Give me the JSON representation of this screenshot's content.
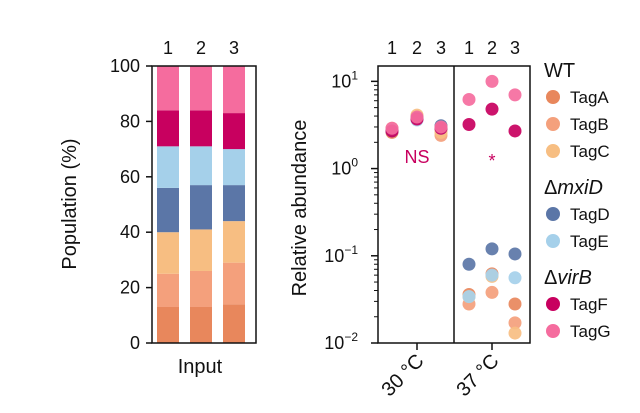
{
  "colors": {
    "TagA": "#E8875C",
    "TagB": "#F4A07C",
    "TagC": "#F7BE82",
    "TagD": "#5B76A7",
    "TagE": "#A5D0EA",
    "TagF": "#C8005F",
    "TagG": "#F56C9E",
    "annot": "#C8005F",
    "axis": "#111111"
  },
  "chart_data": [
    {
      "type": "bar",
      "stacked": true,
      "categories": [
        "1",
        "2",
        "3"
      ],
      "xlabel": "Input",
      "ylabel": "Population (%)",
      "ylim": [
        0,
        100
      ],
      "yticks": [
        "0",
        "20",
        "40",
        "60",
        "80",
        "100"
      ],
      "series": [
        {
          "name": "TagA",
          "values": [
            13,
            13,
            14
          ]
        },
        {
          "name": "TagB",
          "values": [
            12,
            13,
            15
          ]
        },
        {
          "name": "TagC",
          "values": [
            15,
            15,
            15
          ]
        },
        {
          "name": "TagD",
          "values": [
            16,
            16,
            13
          ]
        },
        {
          "name": "TagE",
          "values": [
            15,
            14,
            13
          ]
        },
        {
          "name": "TagF",
          "values": [
            13,
            13,
            13
          ]
        },
        {
          "name": "TagG",
          "values": [
            16,
            16,
            17
          ]
        }
      ]
    },
    {
      "type": "scatter",
      "yscale": "log",
      "ylabel": "Relative abundance",
      "ylim": [
        0.01,
        15
      ],
      "yticks": [
        {
          "base": "10",
          "exp": "1"
        },
        {
          "base": "10",
          "exp": "0"
        },
        {
          "base": "10",
          "exp": "−1"
        },
        {
          "base": "10",
          "exp": "−2"
        }
      ],
      "groups": [
        {
          "label": "30 °C",
          "replicates": [
            "1",
            "2",
            "3"
          ],
          "annotation": "NS"
        },
        {
          "label": "37 °C",
          "replicates": [
            "1",
            "2",
            "3"
          ],
          "annotation": "*"
        }
      ],
      "series": [
        {
          "name": "TagA",
          "values": [
            [
              2.6,
              3.9,
              2.8
            ],
            [
              0.036,
              0.062,
              0.028
            ]
          ]
        },
        {
          "name": "TagB",
          "values": [
            [
              2.8,
              3.7,
              2.4
            ],
            [
              0.028,
              0.038,
              0.017
            ]
          ]
        },
        {
          "name": "TagC",
          "values": [
            [
              2.9,
              4.1,
              2.6
            ],
            [
              0.034,
              0.058,
              0.013
            ]
          ]
        },
        {
          "name": "TagD",
          "values": [
            [
              2.7,
              3.8,
              3.1
            ],
            [
              0.08,
              0.12,
              0.105
            ]
          ]
        },
        {
          "name": "TagE",
          "values": [
            [
              2.8,
              3.6,
              2.9
            ],
            [
              0.034,
              0.06,
              0.056
            ]
          ]
        },
        {
          "name": "TagF",
          "values": [
            [
              2.7,
              3.7,
              2.9
            ],
            [
              3.2,
              4.8,
              2.7
            ]
          ]
        },
        {
          "name": "TagG",
          "values": [
            [
              2.9,
              3.9,
              3.0
            ],
            [
              6.2,
              10.0,
              7.0
            ]
          ]
        }
      ]
    }
  ],
  "legend": {
    "groups": [
      {
        "title": "WT",
        "title_prefix": "",
        "title_italic": "",
        "items": [
          "TagA",
          "TagB",
          "TagC"
        ]
      },
      {
        "title": "",
        "title_prefix": "Δ",
        "title_italic": "mxiD",
        "items": [
          "TagD",
          "TagE"
        ]
      },
      {
        "title": "",
        "title_prefix": "Δ",
        "title_italic": "virB",
        "items": [
          "TagF",
          "TagG"
        ]
      }
    ]
  }
}
